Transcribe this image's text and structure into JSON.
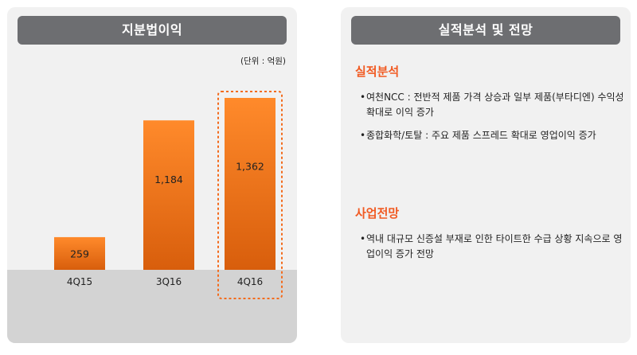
{
  "left_panel": {
    "title": "지분법이익",
    "unit": "(단위 : 억원)"
  },
  "right_panel": {
    "title": "실적분석 및 전망",
    "sections": [
      {
        "heading": "실적분석",
        "bullets": [
          "여천NCC : 전반적 제품 가격 상승과 일부 제품(부타디엔) 수익성 확대로 이익 증가",
          "종합화학/토탈 : 주요 제품 스프레드 확대로 영업이익 증가"
        ]
      },
      {
        "heading": "사업전망",
        "bullets": [
          "역내 대규모 신증설 부재로 인한 타이트한 수급 상황 지속으로 영업이익 증가 전망"
        ]
      }
    ],
    "bullet_char": "•"
  },
  "chart_data": {
    "type": "bar",
    "title": "지분법이익",
    "unit": "(단위 : 억원)",
    "categories": [
      "4Q15",
      "3Q16",
      "4Q16"
    ],
    "values": [
      259,
      1184,
      1362
    ],
    "data_labels": [
      "259",
      "1,184",
      "1,362"
    ],
    "highlight": "4Q16",
    "colors": {
      "bar_top": "#ff8a2b",
      "bar_bottom": "#d85e0c",
      "highlight_border": "#f36b1c"
    }
  }
}
